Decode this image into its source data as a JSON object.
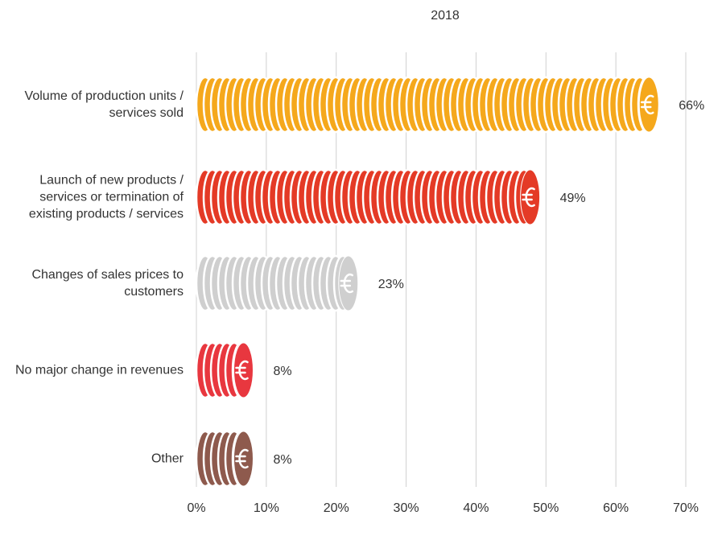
{
  "chart_data": {
    "type": "bar",
    "orientation": "horizontal",
    "title": "2018",
    "categories": [
      "Volume of production units / services sold",
      "Launch of new products / services or termination of existing products / services",
      "Changes of sales prices to customers",
      "No major change in revenues",
      "Other"
    ],
    "values": [
      66,
      49,
      23,
      8,
      8
    ],
    "value_labels": [
      "66%",
      "49%",
      "23%",
      "8%",
      "8%"
    ],
    "colors": [
      "#f5a81c",
      "#e43a26",
      "#cfcfcf",
      "#e8373f",
      "#8e5a4d"
    ],
    "xlim": [
      0,
      70
    ],
    "xticks": [
      {
        "value": 0,
        "label": "0%"
      },
      {
        "value": 10,
        "label": "10%"
      },
      {
        "value": 20,
        "label": "20%"
      },
      {
        "value": 30,
        "label": "30%"
      },
      {
        "value": 40,
        "label": "40%"
      },
      {
        "value": 50,
        "label": "50%"
      },
      {
        "value": 60,
        "label": "60%"
      },
      {
        "value": 70,
        "label": "70%"
      }
    ],
    "grid": true
  }
}
